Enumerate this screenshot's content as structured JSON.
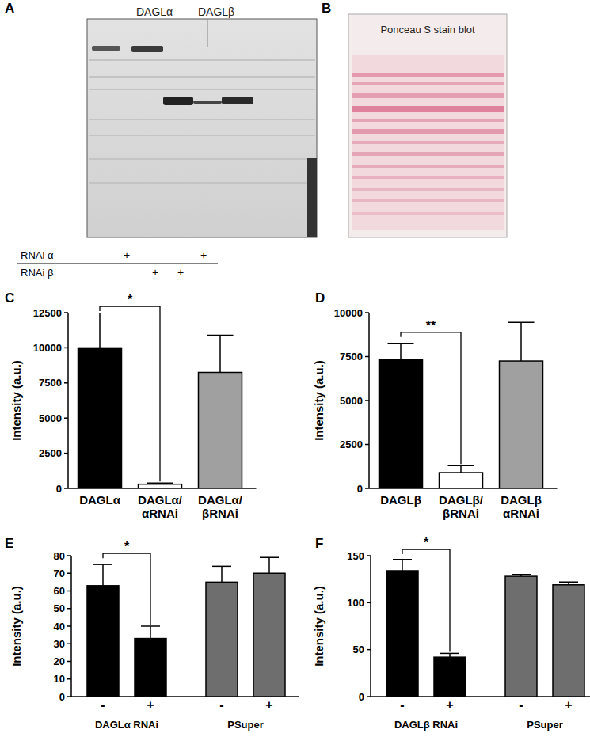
{
  "blots": {
    "western_blot": {
      "annotation": "A",
      "lane_headers": [
        "DAGLα",
        "DAGLβ"
      ],
      "rnai_table": {
        "rows": [
          {
            "label": "RNAi α",
            "cells": [
              "+",
              null,
              null,
              "+"
            ]
          },
          {
            "label": "RNAi β",
            "cells": [
              null,
              "+",
              "+",
              null
            ]
          }
        ]
      }
    },
    "ponceau": {
      "annotation": "B",
      "title": "Ponceau S stain blot"
    }
  },
  "chart_data": [
    {
      "type": "bar",
      "annotation": "C",
      "y_label": "Intensity (a.u.)",
      "categories": [
        "DAGLα",
        "DAGLα/\nαRNAi",
        "DAGLα/\nβRNAi"
      ],
      "values": [
        10000,
        300,
        8250
      ],
      "errors": [
        2500,
        80,
        2650
      ],
      "colors": [
        "#000000",
        "#ffffff",
        "#a0a0a0"
      ],
      "ylim": [
        0,
        12500
      ],
      "yticks": [
        0,
        2500,
        5000,
        7500,
        10000,
        12500
      ],
      "significance": [
        {
          "between": [
            0,
            1
          ],
          "text": "*"
        }
      ]
    },
    {
      "type": "bar",
      "annotation": "D",
      "y_label": "Intensity (a.u.)",
      "categories": [
        "DAGLβ",
        "DAGLβ/\nβRNAi",
        "DAGLβ\nαRNAi"
      ],
      "values": [
        7350,
        900,
        7250
      ],
      "errors": [
        900,
        400,
        2200
      ],
      "colors": [
        "#000000",
        "#ffffff",
        "#a0a0a0"
      ],
      "ylim": [
        0,
        10000
      ],
      "yticks": [
        0,
        2500,
        5000,
        7500,
        10000
      ],
      "significance": [
        {
          "between": [
            0,
            1
          ],
          "text": "**"
        }
      ]
    },
    {
      "type": "bar",
      "annotation": "E",
      "y_label": "Intensity (a.u.)",
      "categories": [
        "-",
        "+",
        "-",
        "+"
      ],
      "groups": [
        {
          "label": "DAGLα  RNAi",
          "span": [
            0,
            1
          ]
        },
        {
          "label": "PSuper",
          "span": [
            2,
            3
          ]
        }
      ],
      "values": [
        63,
        33,
        65,
        70
      ],
      "errors": [
        12,
        7,
        9,
        9
      ],
      "colors": [
        "#000000",
        "#000000",
        "#6e6e6e",
        "#6e6e6e"
      ],
      "ylim": [
        0,
        80
      ],
      "yticks": [
        0,
        10,
        20,
        30,
        40,
        50,
        60,
        70,
        80
      ],
      "significance": [
        {
          "between": [
            0,
            1
          ],
          "text": "*"
        }
      ]
    },
    {
      "type": "bar",
      "annotation": "F",
      "y_label": "Intensity (a.u.)",
      "categories": [
        "-",
        "+",
        "-",
        "+"
      ],
      "groups": [
        {
          "label": "DAGLβ RNAi",
          "span": [
            0,
            1
          ]
        },
        {
          "label": "PSuper",
          "span": [
            2,
            3
          ]
        }
      ],
      "values": [
        134,
        42,
        128,
        119
      ],
      "errors": [
        12,
        4,
        2,
        3
      ],
      "colors": [
        "#000000",
        "#000000",
        "#6e6e6e",
        "#6e6e6e"
      ],
      "ylim": [
        0,
        150
      ],
      "yticks": [
        0,
        50,
        100,
        150
      ],
      "significance": [
        {
          "between": [
            0,
            1
          ],
          "text": "*"
        }
      ]
    }
  ]
}
